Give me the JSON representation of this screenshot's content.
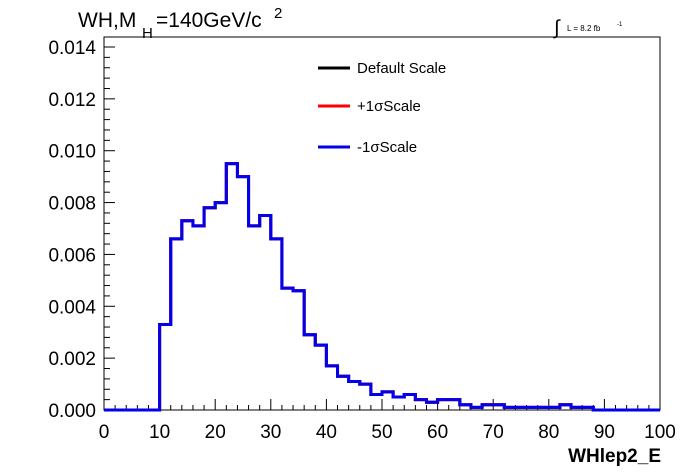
{
  "chart_data": {
    "type": "line",
    "title_main": "WH,M",
    "title_sub": "H",
    "title_rest": "=140GeV/c",
    "title_sup": "2",
    "lumi_integral": "∫",
    "lumi_text": "L = 8.2 fb",
    "lumi_sup": "-1",
    "xlabel": "WHlep2_E",
    "ylabel": "",
    "xlim": [
      0,
      100
    ],
    "ylim": [
      0,
      0.0142
    ],
    "xticks": [
      "0",
      "10",
      "20",
      "30",
      "40",
      "50",
      "60",
      "70",
      "80",
      "90",
      "100"
    ],
    "yticks": [
      "0.000",
      "0.002",
      "0.004",
      "0.006",
      "0.008",
      "0.010",
      "0.012",
      "0.014"
    ],
    "legend_position": "top-center",
    "bin_width": 2,
    "bin_edges_start": 0,
    "series": [
      {
        "name": "Default Scale",
        "color": "#000000",
        "values": [
          0,
          0,
          0,
          0,
          0,
          0.0033,
          0.0066,
          0.0073,
          0.0071,
          0.0078,
          0.008,
          0.0095,
          0.009,
          0.0071,
          0.0075,
          0.0066,
          0.0047,
          0.0046,
          0.0029,
          0.0025,
          0.0017,
          0.0013,
          0.0011,
          0.001,
          0.0006,
          0.0007,
          0.0005,
          0.0006,
          0.0004,
          0.0003,
          0.0004,
          0.0004,
          0.0002,
          0.0001,
          0.0002,
          0.0002,
          0.0001,
          0.0001,
          0.0001,
          0.0001,
          0.0001,
          0.0002,
          0.0001,
          0.0001,
          0.0,
          0.0,
          0.0,
          0.0,
          0.0,
          0.0
        ]
      },
      {
        "name": "+1σScale",
        "color": "#ff0000",
        "values": [
          0,
          0,
          0,
          0,
          0,
          0.0033,
          0.0066,
          0.0073,
          0.0071,
          0.0078,
          0.008,
          0.0095,
          0.009,
          0.0071,
          0.0075,
          0.0066,
          0.0047,
          0.0046,
          0.0029,
          0.0025,
          0.0017,
          0.0013,
          0.0011,
          0.001,
          0.0006,
          0.0007,
          0.0005,
          0.0006,
          0.0004,
          0.0003,
          0.0004,
          0.0004,
          0.0002,
          0.0001,
          0.0002,
          0.0002,
          0.0001,
          0.0001,
          0.0001,
          0.0001,
          0.0001,
          0.0002,
          0.0001,
          0.0001,
          0.0,
          0.0,
          0.0,
          0.0,
          0.0,
          0.0
        ]
      },
      {
        "name": "-1σScale",
        "color": "#0000ee",
        "values": [
          0,
          0,
          0,
          0,
          0,
          0.0033,
          0.0066,
          0.0073,
          0.0071,
          0.0078,
          0.008,
          0.0095,
          0.009,
          0.0071,
          0.0075,
          0.0066,
          0.0047,
          0.0046,
          0.0029,
          0.0025,
          0.0017,
          0.0013,
          0.0011,
          0.001,
          0.0006,
          0.0007,
          0.0005,
          0.0006,
          0.0004,
          0.0003,
          0.0004,
          0.0004,
          0.0002,
          0.0001,
          0.0002,
          0.0002,
          0.0001,
          0.0001,
          0.0001,
          0.0001,
          0.0001,
          0.0002,
          0.0001,
          0.0001,
          0.0,
          0.0,
          0.0,
          0.0,
          0.0,
          0.0
        ]
      }
    ]
  }
}
